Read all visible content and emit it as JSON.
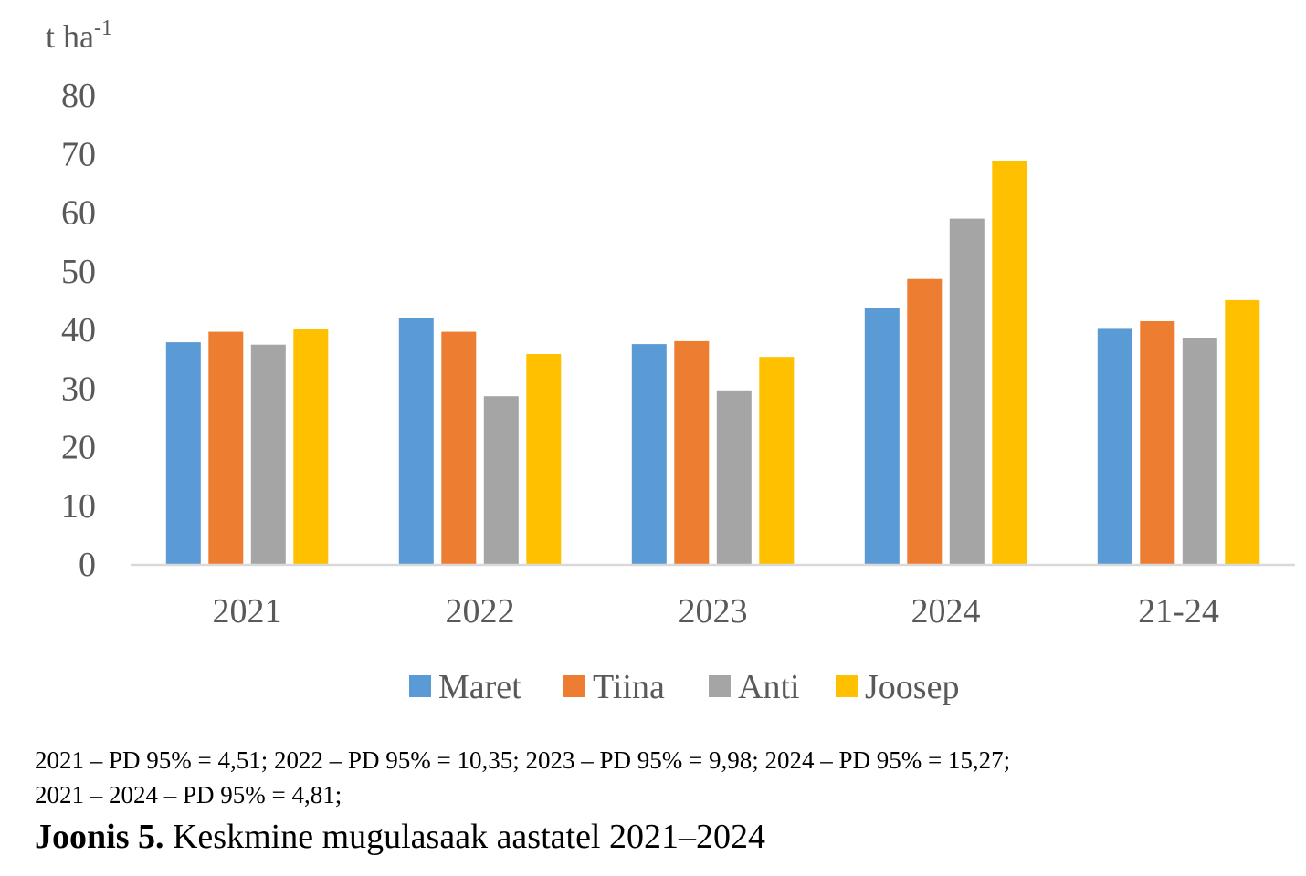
{
  "chart_data": {
    "type": "bar",
    "unit_label": "t ha",
    "unit_superscript": "-1",
    "categories": [
      "2021",
      "2022",
      "2023",
      "2024",
      "21-24"
    ],
    "series": [
      {
        "name": "Maret",
        "color": "#5B9BD5",
        "values": [
          37.8,
          41.9,
          37.5,
          43.6,
          40.1
        ]
      },
      {
        "name": "Tiina",
        "color": "#ED7D31",
        "values": [
          39.6,
          39.6,
          38.0,
          48.6,
          41.4
        ]
      },
      {
        "name": "Anti",
        "color": "#A5A5A5",
        "values": [
          37.4,
          28.6,
          29.6,
          58.9,
          38.6
        ]
      },
      {
        "name": "Joosep",
        "color": "#FFC000",
        "values": [
          40.0,
          35.8,
          35.3,
          68.8,
          45.0
        ]
      }
    ],
    "ylim": [
      0,
      80
    ],
    "yticks": [
      0,
      10,
      20,
      30,
      40,
      50,
      60,
      70,
      80
    ],
    "grid": false,
    "legend": "bottom"
  },
  "notes": {
    "line1": "2021 – PD 95% = 4,51; 2022 – PD 95% = 10,35; 2023 – PD 95% = 9,98; 2024 – PD 95% = 15,27;",
    "line2": "2021 – 2024 – PD 95% = 4,81;"
  },
  "caption": {
    "label": "Joonis 5.",
    "text": " Keskmine mugulasaak aastatel 2021–2024"
  }
}
